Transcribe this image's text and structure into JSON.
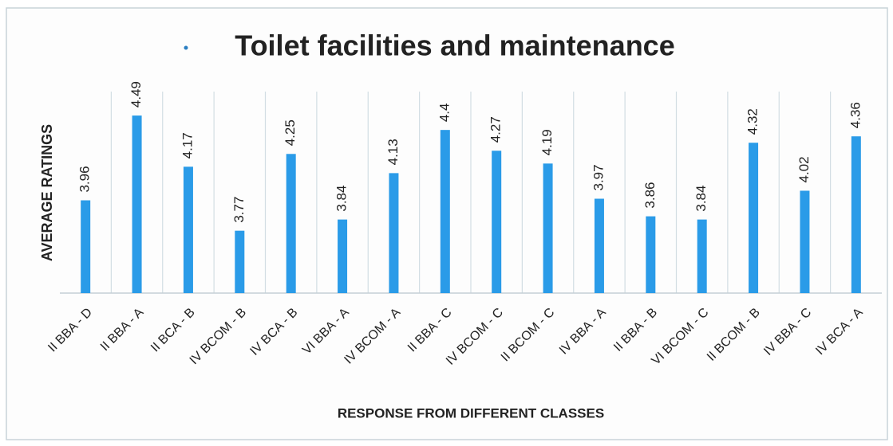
{
  "chart_data": {
    "type": "bar",
    "title": "Toilet facilities and maintenance",
    "x_label": "RESPONSE FROM  DIFFERENT CLASSES",
    "y_label": "AVERAGE  RATINGS",
    "categories": [
      "II BBA - D",
      "II BBA - A",
      "II BCA - B",
      "IV BCOM - B",
      "IV BCA - B",
      "VI BBA - A",
      "IV BCOM - A",
      "II BBA - C",
      "IV BCOM - C",
      "II BCOM - C",
      "IV BBA - A",
      "II BBA - B",
      "VI BCOM - C",
      "II BCOM - B",
      "IV BBA - C",
      "IV BCA - A"
    ],
    "values": [
      3.96,
      4.49,
      4.17,
      3.77,
      4.25,
      3.84,
      4.13,
      4.4,
      4.27,
      4.19,
      3.97,
      3.86,
      3.84,
      4.32,
      4.02,
      4.36
    ],
    "color": "#2a9be8",
    "ylim": [
      3.38,
      4.6
    ],
    "grid": true
  }
}
